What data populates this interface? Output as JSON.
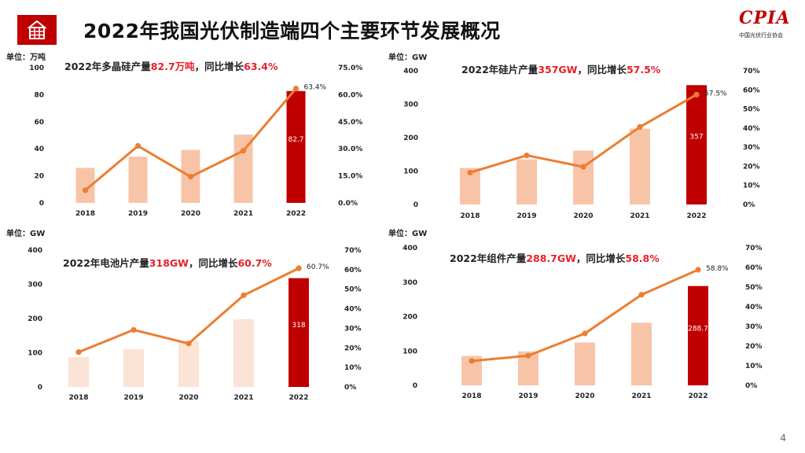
{
  "header": {
    "title": "2022年我国光伏制造端四个主要环节发展概况",
    "icon": "building-grid-icon",
    "accent_color": "#c00000"
  },
  "logo": {
    "text": "CPIA",
    "subtitle": "中国光伏行业协会"
  },
  "page_number": "4",
  "chart_data": [
    {
      "type": "bar+line",
      "unit": "单位：万吨",
      "title_prefix": "2022年多晶硅产量",
      "title_value": "82.7万吨",
      "title_mid": "，同比增长",
      "title_growth": "63.4%",
      "categories": [
        "2018",
        "2019",
        "2020",
        "2021",
        "2022"
      ],
      "bar_values": [
        25.9,
        34.2,
        39.2,
        50.5,
        82.7
      ],
      "bar_value_label": "82.7",
      "line_values": [
        7.0,
        31.6,
        14.5,
        28.9,
        63.4
      ],
      "line_value_label": "63.4%",
      "y_left": {
        "min": 0,
        "max": 100,
        "ticks": [
          "0",
          "20",
          "40",
          "60",
          "80",
          "100"
        ]
      },
      "y_right": {
        "min": 0,
        "max": 75,
        "ticks": [
          "0.0%",
          "15.0%",
          "30.0%",
          "45.0%",
          "60.0%",
          "75.0%"
        ]
      },
      "colors": {
        "bar": "#f8c4a8",
        "bar_highlight": "#c00000",
        "line": "#ed7d31"
      }
    },
    {
      "type": "bar+line",
      "unit": "单位：GW",
      "title_prefix": "2022年硅片产量",
      "title_value": "357GW",
      "title_mid": "，同比增长",
      "title_growth": "57.5%",
      "categories": [
        "2018",
        "2019",
        "2020",
        "2021",
        "2022"
      ],
      "bar_values": [
        109.2,
        134.7,
        161.3,
        226.6,
        357
      ],
      "bar_value_label": "357",
      "line_values": [
        16.7,
        25.7,
        19.7,
        40.6,
        57.5
      ],
      "line_value_label": "57.5%",
      "y_left": {
        "min": 0,
        "max": 400,
        "ticks": [
          "0",
          "100",
          "200",
          "300",
          "400"
        ]
      },
      "y_right": {
        "min": 0,
        "max": 70,
        "ticks": [
          "0%",
          "10%",
          "20%",
          "30%",
          "40%",
          "50%",
          "60%",
          "70%"
        ]
      },
      "colors": {
        "bar": "#f8c4a8",
        "bar_highlight": "#c00000",
        "line": "#ed7d31"
      }
    },
    {
      "type": "bar+line",
      "unit": "单位：GW",
      "title_prefix": "2022年电池片产量",
      "title_value": "318GW",
      "title_mid": "，同比增长",
      "title_growth": "60.7%",
      "categories": [
        "2018",
        "2019",
        "2020",
        "2021",
        "2022"
      ],
      "bar_values": [
        87.2,
        110.3,
        134.8,
        197.9,
        318
      ],
      "bar_value_label": "318",
      "line_values": [
        17.8,
        29.2,
        22.2,
        46.9,
        60.7
      ],
      "line_value_label": "60.7%",
      "y_left": {
        "min": 0,
        "max": 400,
        "ticks": [
          "0",
          "100",
          "200",
          "300",
          "400"
        ]
      },
      "y_right": {
        "min": 0,
        "max": 70,
        "ticks": [
          "0%",
          "10%",
          "20%",
          "30%",
          "40%",
          "50%",
          "60%",
          "70%"
        ]
      },
      "colors": {
        "bar": "#fbe3d6",
        "bar_highlight": "#c00000",
        "line": "#ed7d31"
      }
    },
    {
      "type": "bar+line",
      "unit": "单位：GW",
      "title_prefix": "2022年组件产量",
      "title_value": "288.7GW",
      "title_mid": "，同比增长",
      "title_growth": "58.8%",
      "categories": [
        "2018",
        "2019",
        "2020",
        "2021",
        "2022"
      ],
      "bar_values": [
        85.7,
        98.6,
        124.6,
        182,
        288.7
      ],
      "bar_value_label": "288.7",
      "line_values": [
        12.4,
        15.1,
        26.4,
        46.1,
        58.8
      ],
      "line_value_label": "58.8%",
      "y_left": {
        "min": 0,
        "max": 400,
        "ticks": [
          "0",
          "100",
          "200",
          "300",
          "400"
        ]
      },
      "y_right": {
        "min": 0,
        "max": 70,
        "ticks": [
          "0%",
          "10%",
          "20%",
          "30%",
          "40%",
          "50%",
          "60%",
          "70%"
        ]
      },
      "colors": {
        "bar": "#f8c4a8",
        "bar_highlight": "#c00000",
        "line": "#ed7d31"
      }
    }
  ]
}
